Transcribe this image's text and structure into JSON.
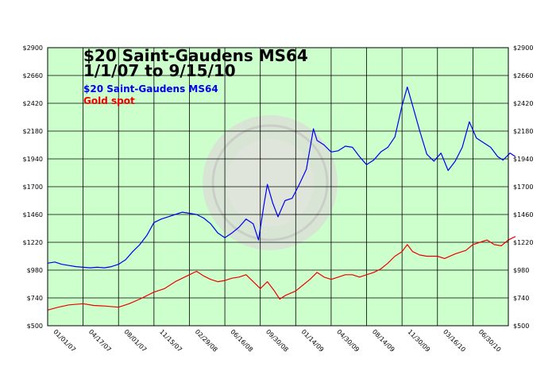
{
  "chart_data": {
    "type": "line",
    "title": "$20 Saint-Gaudens MS64",
    "subtitle": "1/1/07 to 9/15/10",
    "ylim": [
      500,
      2900
    ],
    "yticks": [
      "$500",
      "$740",
      "$980",
      "$1220",
      "$1460",
      "$1700",
      "$1940",
      "$2180",
      "$2420",
      "$2660",
      "$2900"
    ],
    "xticks": [
      "01/01/07",
      "04/17/07",
      "08/01/07",
      "11/15/07",
      "02/29/08",
      "06/16/08",
      "09/30/08",
      "01/14/09",
      "04/30/09",
      "08/14/09",
      "11/30/09",
      "03/16/10",
      "06/30/10"
    ],
    "x_count": 13,
    "grid": true,
    "legend_position": "top-left",
    "colors": {
      "plot_bg": "#ccffcc",
      "grid": "#000000",
      "coin": "#d8d8d8"
    },
    "series": [
      {
        "name": "$20 Saint-Gaudens MS64",
        "color": "#0000ee",
        "points": [
          [
            0,
            1040
          ],
          [
            0.2,
            1050
          ],
          [
            0.4,
            1030
          ],
          [
            0.6,
            1020
          ],
          [
            0.8,
            1010
          ],
          [
            1,
            1005
          ],
          [
            1.2,
            1000
          ],
          [
            1.4,
            1005
          ],
          [
            1.6,
            1000
          ],
          [
            1.8,
            1010
          ],
          [
            2,
            1030
          ],
          [
            2.2,
            1070
          ],
          [
            2.4,
            1140
          ],
          [
            2.6,
            1200
          ],
          [
            2.8,
            1280
          ],
          [
            3,
            1390
          ],
          [
            3.2,
            1420
          ],
          [
            3.4,
            1440
          ],
          [
            3.6,
            1460
          ],
          [
            3.8,
            1480
          ],
          [
            4,
            1470
          ],
          [
            4.2,
            1460
          ],
          [
            4.4,
            1430
          ],
          [
            4.6,
            1380
          ],
          [
            4.8,
            1300
          ],
          [
            5,
            1260
          ],
          [
            5.2,
            1300
          ],
          [
            5.4,
            1350
          ],
          [
            5.6,
            1420
          ],
          [
            5.8,
            1380
          ],
          [
            5.95,
            1240
          ],
          [
            6.1,
            1540
          ],
          [
            6.2,
            1720
          ],
          [
            6.35,
            1560
          ],
          [
            6.5,
            1440
          ],
          [
            6.7,
            1580
          ],
          [
            6.9,
            1600
          ],
          [
            7.1,
            1720
          ],
          [
            7.3,
            1850
          ],
          [
            7.5,
            2200
          ],
          [
            7.6,
            2100
          ],
          [
            7.8,
            2060
          ],
          [
            8,
            2000
          ],
          [
            8.2,
            2010
          ],
          [
            8.4,
            2050
          ],
          [
            8.6,
            2040
          ],
          [
            8.8,
            1960
          ],
          [
            9,
            1890
          ],
          [
            9.2,
            1930
          ],
          [
            9.4,
            2000
          ],
          [
            9.6,
            2040
          ],
          [
            9.8,
            2130
          ],
          [
            10,
            2400
          ],
          [
            10.15,
            2560
          ],
          [
            10.3,
            2400
          ],
          [
            10.5,
            2180
          ],
          [
            10.7,
            1980
          ],
          [
            10.9,
            1920
          ],
          [
            11.1,
            1990
          ],
          [
            11.3,
            1840
          ],
          [
            11.5,
            1920
          ],
          [
            11.7,
            2040
          ],
          [
            11.9,
            2260
          ],
          [
            12.1,
            2120
          ],
          [
            12.3,
            2080
          ],
          [
            12.5,
            2040
          ],
          [
            12.7,
            1960
          ],
          [
            12.85,
            1930
          ],
          [
            13.05,
            1990
          ],
          [
            13.2,
            1960
          ]
        ]
      },
      {
        "name": "Gold spot",
        "color": "#ee0000",
        "points": [
          [
            0,
            635
          ],
          [
            0.3,
            660
          ],
          [
            0.6,
            680
          ],
          [
            1,
            690
          ],
          [
            1.3,
            675
          ],
          [
            1.6,
            670
          ],
          [
            2,
            660
          ],
          [
            2.3,
            690
          ],
          [
            2.6,
            730
          ],
          [
            3,
            790
          ],
          [
            3.3,
            820
          ],
          [
            3.6,
            880
          ],
          [
            4,
            940
          ],
          [
            4.2,
            970
          ],
          [
            4.4,
            930
          ],
          [
            4.6,
            900
          ],
          [
            4.8,
            880
          ],
          [
            5,
            890
          ],
          [
            5.2,
            910
          ],
          [
            5.4,
            920
          ],
          [
            5.6,
            940
          ],
          [
            5.8,
            880
          ],
          [
            6,
            820
          ],
          [
            6.2,
            880
          ],
          [
            6.4,
            800
          ],
          [
            6.55,
            730
          ],
          [
            6.7,
            760
          ],
          [
            7,
            800
          ],
          [
            7.2,
            850
          ],
          [
            7.4,
            900
          ],
          [
            7.6,
            960
          ],
          [
            7.8,
            920
          ],
          [
            8,
            900
          ],
          [
            8.2,
            920
          ],
          [
            8.4,
            940
          ],
          [
            8.6,
            940
          ],
          [
            8.8,
            920
          ],
          [
            9,
            940
          ],
          [
            9.2,
            960
          ],
          [
            9.4,
            990
          ],
          [
            9.6,
            1040
          ],
          [
            9.8,
            1100
          ],
          [
            10,
            1140
          ],
          [
            10.15,
            1200
          ],
          [
            10.3,
            1140
          ],
          [
            10.5,
            1110
          ],
          [
            10.7,
            1100
          ],
          [
            11,
            1100
          ],
          [
            11.2,
            1080
          ],
          [
            11.5,
            1120
          ],
          [
            11.8,
            1150
          ],
          [
            12,
            1200
          ],
          [
            12.2,
            1220
          ],
          [
            12.4,
            1240
          ],
          [
            12.6,
            1200
          ],
          [
            12.8,
            1190
          ],
          [
            13,
            1240
          ],
          [
            13.2,
            1270
          ]
        ]
      }
    ]
  }
}
